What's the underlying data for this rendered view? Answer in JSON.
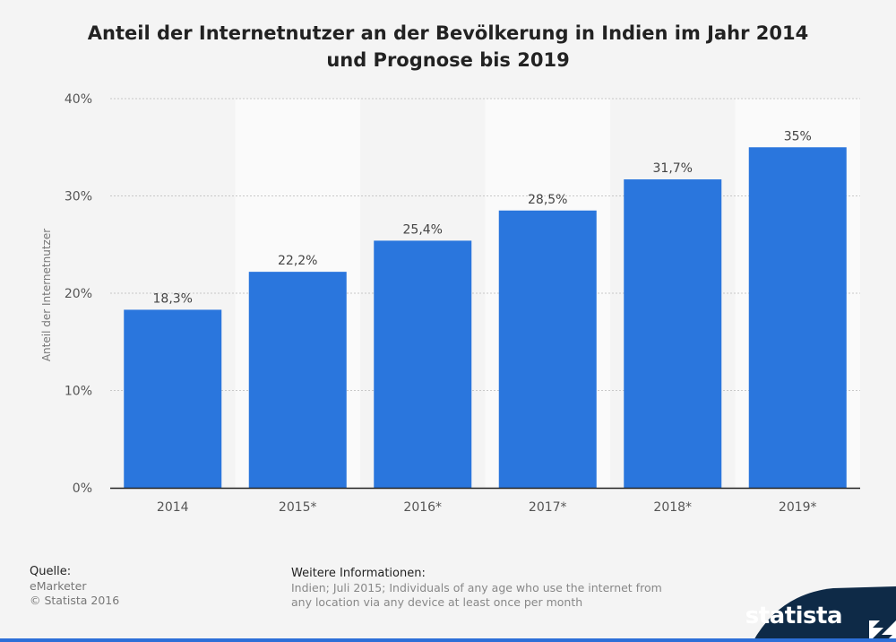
{
  "title_line1": "Anteil der Internetnutzer an der Bevölkerung in Indien im Jahr 2014",
  "title_line2": "und Prognose bis 2019",
  "chart_data": {
    "type": "bar",
    "categories": [
      "2014",
      "2015*",
      "2016*",
      "2017*",
      "2018*",
      "2019*"
    ],
    "values": [
      18.3,
      22.2,
      25.4,
      28.5,
      31.7,
      35
    ],
    "data_labels": [
      "18,3%",
      "22,2%",
      "25,4%",
      "28,5%",
      "31,7%",
      "35%"
    ],
    "ylabel": "Anteil der Internetnutzer",
    "ylim": [
      0,
      40
    ],
    "yticks": [
      0,
      10,
      20,
      30,
      40
    ],
    "ytick_labels": [
      "0%",
      "10%",
      "20%",
      "30%",
      "40%"
    ],
    "grid": true,
    "colors": {
      "bar": "#2a76dd",
      "alt_band": "#fafafa"
    }
  },
  "footer": {
    "source_label": "Quelle:",
    "source": "eMarketer",
    "copyright": "© Statista 2016",
    "info_label": "Weitere Informationen:",
    "info_text": "Indien; Juli 2015; Individuals of any age who use the internet from any location via any device at least once per month"
  },
  "brand": {
    "name": "statista",
    "color": "#0e2a47"
  }
}
